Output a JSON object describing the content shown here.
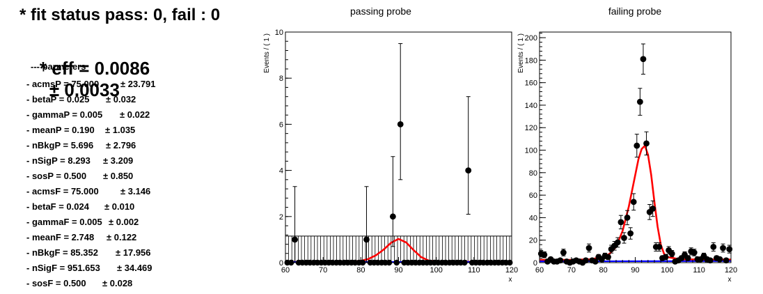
{
  "summary": {
    "status_line": "* fit status pass: 0, fail : 0",
    "eff_line": "* eff = 0.0086",
    "eff_err": "± 0.0033",
    "params_header": "--- parmeters",
    "params": [
      {
        "label": "- acmsP = 75.000",
        "err": "± 23.791"
      },
      {
        "label": "- betaP = 0.025",
        "err": "± 0.032"
      },
      {
        "label": "- gammaP = 0.005",
        "err": "± 0.022"
      },
      {
        "label": "- meanP = 0.190",
        "err": "± 1.035"
      },
      {
        "label": "- nBkgP = 5.696",
        "err": "± 2.796"
      },
      {
        "label": "- nSigP = 8.293",
        "err": "± 3.209"
      },
      {
        "label": "- sosP = 0.500",
        "err": "± 0.850"
      },
      {
        "label": "- acmsF = 75.000",
        "err": "± 3.146"
      },
      {
        "label": "- betaF = 0.024",
        "err": "± 0.010"
      },
      {
        "label": "- gammaF = 0.005",
        "err": "± 0.002"
      },
      {
        "label": "- meanF = 2.748",
        "err": "± 0.122"
      },
      {
        "label": "- nBkgF = 85.352",
        "err": "± 17.956"
      },
      {
        "label": "- nSigF = 951.653",
        "err": "± 34.469"
      },
      {
        "label": "- sosF = 0.500",
        "err": "± 0.028"
      }
    ]
  },
  "chart_data": [
    {
      "type": "scatter",
      "title": "passing probe",
      "xlabel": "x",
      "ylabel": "Events / ( 1 )",
      "xlim": [
        60,
        120
      ],
      "ylim": [
        0,
        10
      ],
      "xticks": [
        60,
        70,
        80,
        90,
        100,
        110,
        120
      ],
      "yticks": [
        0,
        2,
        4,
        6,
        8,
        10
      ],
      "grid": false,
      "points": [
        {
          "x": 62.5,
          "y": 1,
          "ylo": 0,
          "yhi": 3.3
        },
        {
          "x": 81.5,
          "y": 1,
          "ylo": 0,
          "yhi": 3.3
        },
        {
          "x": 88.5,
          "y": 2,
          "ylo": 0.7,
          "yhi": 4.6
        },
        {
          "x": 90.5,
          "y": 6,
          "ylo": 3.6,
          "yhi": 9.5
        },
        {
          "x": 108.5,
          "y": 4,
          "ylo": 2.1,
          "yhi": 7.2
        }
      ],
      "zero_bins": {
        "from": 60.5,
        "to": 119.5,
        "step": 1
      },
      "band": {
        "ymax": 1.15,
        "style": "vertical-hatch"
      },
      "curves": [
        {
          "name": "signal+background",
          "color": "#ff0000",
          "points": [
            [
              60,
              0.03
            ],
            [
              76,
              0.04
            ],
            [
              80,
              0.08
            ],
            [
              82,
              0.16
            ],
            [
              84,
              0.32
            ],
            [
              86,
              0.56
            ],
            [
              88,
              0.86
            ],
            [
              90,
              1.03
            ],
            [
              92,
              0.88
            ],
            [
              94,
              0.54
            ],
            [
              96,
              0.24
            ],
            [
              98,
              0.09
            ],
            [
              100,
              0.05
            ],
            [
              104,
              0.04
            ],
            [
              120,
              0.03
            ]
          ]
        },
        {
          "name": "background",
          "color": "#0000ff",
          "points": [
            [
              60,
              0.03
            ],
            [
              120,
              0.03
            ]
          ]
        }
      ]
    },
    {
      "type": "scatter",
      "title": "failing probe",
      "xlabel": "x",
      "ylabel": "Events / ( 1 )",
      "xlim": [
        60,
        120
      ],
      "ylim": [
        0,
        205
      ],
      "xticks": [
        60,
        70,
        80,
        90,
        100,
        110,
        120
      ],
      "yticks": [
        0,
        20,
        40,
        60,
        80,
        100,
        120,
        140,
        160,
        180,
        200
      ],
      "grid": false,
      "points": [
        {
          "x": 60.5,
          "y": 8
        },
        {
          "x": 61.5,
          "y": 7
        },
        {
          "x": 62.5,
          "y": 1
        },
        {
          "x": 63.5,
          "y": 3
        },
        {
          "x": 64.5,
          "y": 1
        },
        {
          "x": 65.5,
          "y": 1
        },
        {
          "x": 66.5,
          "y": 2
        },
        {
          "x": 67.5,
          "y": 9
        },
        {
          "x": 68.5,
          "y": 1
        },
        {
          "x": 69.5,
          "y": 0
        },
        {
          "x": 70.5,
          "y": 1
        },
        {
          "x": 71.5,
          "y": 2
        },
        {
          "x": 72.5,
          "y": 1
        },
        {
          "x": 73.5,
          "y": 0
        },
        {
          "x": 74.5,
          "y": 2
        },
        {
          "x": 75.5,
          "y": 13
        },
        {
          "x": 76.5,
          "y": 2
        },
        {
          "x": 77.5,
          "y": 1
        },
        {
          "x": 78.5,
          "y": 5
        },
        {
          "x": 79.5,
          "y": 3
        },
        {
          "x": 80.5,
          "y": 6
        },
        {
          "x": 81.5,
          "y": 5
        },
        {
          "x": 82.5,
          "y": 12
        },
        {
          "x": 83.5,
          "y": 15
        },
        {
          "x": 84.5,
          "y": 18
        },
        {
          "x": 85.5,
          "y": 36
        },
        {
          "x": 86.5,
          "y": 22
        },
        {
          "x": 87.5,
          "y": 40
        },
        {
          "x": 88.5,
          "y": 26
        },
        {
          "x": 89.5,
          "y": 54
        },
        {
          "x": 90.5,
          "y": 104
        },
        {
          "x": 91.5,
          "y": 143
        },
        {
          "x": 92.5,
          "y": 181
        },
        {
          "x": 93.5,
          "y": 106
        },
        {
          "x": 94.5,
          "y": 45
        },
        {
          "x": 95.5,
          "y": 48
        },
        {
          "x": 96.5,
          "y": 14
        },
        {
          "x": 97.5,
          "y": 14
        },
        {
          "x": 98.5,
          "y": 4
        },
        {
          "x": 99.5,
          "y": 5
        },
        {
          "x": 100.5,
          "y": 11
        },
        {
          "x": 101.5,
          "y": 8
        },
        {
          "x": 102.5,
          "y": 1
        },
        {
          "x": 103.5,
          "y": 2
        },
        {
          "x": 104.5,
          "y": 4
        },
        {
          "x": 105.5,
          "y": 7
        },
        {
          "x": 106.5,
          "y": 4
        },
        {
          "x": 107.5,
          "y": 10
        },
        {
          "x": 108.5,
          "y": 9
        },
        {
          "x": 109.5,
          "y": 3
        },
        {
          "x": 110.5,
          "y": 3
        },
        {
          "x": 111.5,
          "y": 6
        },
        {
          "x": 112.5,
          "y": 3
        },
        {
          "x": 113.5,
          "y": 2
        },
        {
          "x": 114.5,
          "y": 14
        },
        {
          "x": 115.5,
          "y": 4
        },
        {
          "x": 116.5,
          "y": 3
        },
        {
          "x": 117.5,
          "y": 13
        },
        {
          "x": 118.5,
          "y": 2
        },
        {
          "x": 119.5,
          "y": 12
        }
      ],
      "curves": [
        {
          "name": "signal+background",
          "color": "#ff0000",
          "points": [
            [
              60,
              2.5
            ],
            [
              70,
              2.5
            ],
            [
              76,
              3
            ],
            [
              80,
              5
            ],
            [
              82,
              8
            ],
            [
              84,
              14
            ],
            [
              86,
              28
            ],
            [
              88,
              50
            ],
            [
              90,
              78
            ],
            [
              91,
              92
            ],
            [
              92,
              101
            ],
            [
              93,
              104
            ],
            [
              94,
              96
            ],
            [
              95,
              78
            ],
            [
              96,
              54
            ],
            [
              97,
              32
            ],
            [
              98,
              16
            ],
            [
              99,
              8
            ],
            [
              100,
              5
            ],
            [
              104,
              3
            ],
            [
              110,
              2.8
            ],
            [
              120,
              2.8
            ]
          ]
        },
        {
          "name": "background",
          "color": "#0000ff",
          "points": [
            [
              60,
              1.2
            ],
            [
              120,
              1.4
            ]
          ]
        }
      ]
    }
  ]
}
